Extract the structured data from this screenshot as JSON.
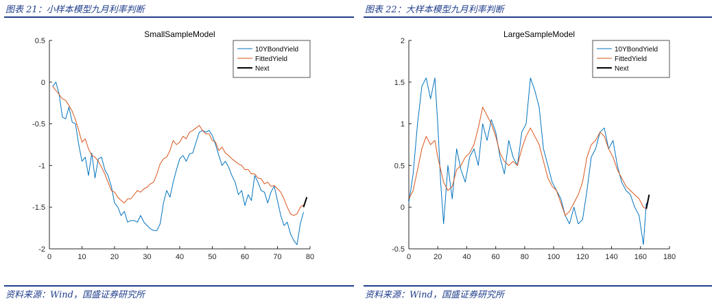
{
  "colors": {
    "series_blue": "#0072BD",
    "series_orange": "#D95319",
    "series_black": "#000000",
    "caption_blue": "#1f3d8a"
  },
  "panels": [
    {
      "caption": "图表 21：小样本模型九月利率判断",
      "source": "资料来源：Wind，国盛证券研究所"
    },
    {
      "caption": "图表 22：大样本模型九月利率判断",
      "source": "资料来源：Wind，国盛证券研究所"
    }
  ],
  "chart_data": [
    {
      "type": "line",
      "title": "SmallSampleModel",
      "xlim": [
        0,
        80
      ],
      "ylim": [
        -2,
        0.5
      ],
      "xticks": [
        0,
        10,
        20,
        30,
        40,
        50,
        60,
        70,
        80
      ],
      "yticks": [
        -2,
        -1.5,
        -1,
        -0.5,
        0,
        0.5
      ],
      "xtick_labels": [
        "0",
        "10",
        "20",
        "30",
        "40",
        "50",
        "60",
        "70",
        "80"
      ],
      "ytick_labels": [
        "-2",
        "-1.5",
        "-1",
        "-0.5",
        "0",
        "0.5"
      ],
      "grid": false,
      "legend": "top-right",
      "series": [
        {
          "name": "10YBondYield",
          "x": [
            1,
            2,
            3,
            4,
            5,
            6,
            7,
            8,
            9,
            10,
            11,
            12,
            13,
            14,
            15,
            16,
            17,
            18,
            19,
            20,
            21,
            22,
            23,
            24,
            25,
            26,
            27,
            28,
            29,
            30,
            31,
            32,
            33,
            34,
            35,
            36,
            37,
            38,
            39,
            40,
            41,
            42,
            43,
            44,
            45,
            46,
            47,
            48,
            49,
            50,
            51,
            52,
            53,
            54,
            55,
            56,
            57,
            58,
            59,
            60,
            61,
            62,
            63,
            64,
            65,
            66,
            67,
            68,
            69,
            70,
            71,
            72,
            73,
            74,
            75,
            76,
            77,
            78
          ],
          "y": [
            -0.05,
            0.0,
            -0.15,
            -0.42,
            -0.44,
            -0.3,
            -0.48,
            -0.5,
            -0.75,
            -0.95,
            -0.9,
            -1.12,
            -0.85,
            -1.15,
            -0.92,
            -0.9,
            -1.05,
            -1.12,
            -1.25,
            -1.45,
            -1.5,
            -1.6,
            -1.55,
            -1.68,
            -1.66,
            -1.66,
            -1.68,
            -1.6,
            -1.68,
            -1.72,
            -1.76,
            -1.78,
            -1.78,
            -1.7,
            -1.45,
            -1.3,
            -1.38,
            -1.2,
            -1.05,
            -0.92,
            -0.88,
            -0.95,
            -0.86,
            -0.85,
            -0.72,
            -0.6,
            -0.58,
            -0.6,
            -0.58,
            -0.64,
            -0.75,
            -0.88,
            -1.0,
            -0.95,
            -1.02,
            -1.12,
            -1.2,
            -1.35,
            -1.3,
            -1.48,
            -1.35,
            -1.42,
            -1.12,
            -1.2,
            -1.3,
            -1.32,
            -1.45,
            -1.32,
            -1.25,
            -1.42,
            -1.6,
            -1.72,
            -1.68,
            -1.82,
            -1.9,
            -1.95,
            -1.7,
            -1.56
          ]
        },
        {
          "name": "FittedYield",
          "x": [
            1,
            2,
            3,
            4,
            5,
            6,
            7,
            8,
            9,
            10,
            11,
            12,
            13,
            14,
            15,
            16,
            17,
            18,
            19,
            20,
            21,
            22,
            23,
            24,
            25,
            26,
            27,
            28,
            29,
            30,
            31,
            32,
            33,
            34,
            35,
            36,
            37,
            38,
            39,
            40,
            41,
            42,
            43,
            44,
            45,
            46,
            47,
            48,
            49,
            50,
            51,
            52,
            53,
            54,
            55,
            56,
            57,
            58,
            59,
            60,
            61,
            62,
            63,
            64,
            65,
            66,
            67,
            68,
            69,
            70,
            71,
            72,
            73,
            74,
            75,
            76,
            77,
            78
          ],
          "y": [
            -0.05,
            -0.1,
            -0.15,
            -0.2,
            -0.22,
            -0.28,
            -0.35,
            -0.45,
            -0.58,
            -0.72,
            -0.68,
            -0.8,
            -0.88,
            -0.9,
            -0.95,
            -1.02,
            -1.1,
            -1.2,
            -1.3,
            -1.32,
            -1.38,
            -1.42,
            -1.45,
            -1.4,
            -1.4,
            -1.35,
            -1.3,
            -1.32,
            -1.28,
            -1.26,
            -1.22,
            -1.2,
            -1.1,
            -0.98,
            -0.92,
            -0.9,
            -0.82,
            -0.7,
            -0.75,
            -0.72,
            -0.65,
            -0.68,
            -0.6,
            -0.58,
            -0.55,
            -0.52,
            -0.58,
            -0.62,
            -0.62,
            -0.7,
            -0.72,
            -0.82,
            -0.78,
            -0.85,
            -0.88,
            -0.92,
            -0.95,
            -0.98,
            -1.0,
            -1.05,
            -1.05,
            -1.1,
            -1.1,
            -1.15,
            -1.16,
            -1.22,
            -1.2,
            -1.25,
            -1.24,
            -1.28,
            -1.32,
            -1.4,
            -1.5,
            -1.58,
            -1.6,
            -1.58,
            -1.5,
            -1.47
          ]
        },
        {
          "name": "Next",
          "x": [
            78,
            79
          ],
          "y": [
            -1.5,
            -1.38
          ]
        }
      ]
    },
    {
      "type": "line",
      "title": "LargeSampleModel",
      "xlim": [
        0,
        180
      ],
      "ylim": [
        -0.5,
        2
      ],
      "xticks": [
        0,
        20,
        40,
        60,
        80,
        100,
        120,
        140,
        160,
        180
      ],
      "yticks": [
        -0.5,
        0,
        0.5,
        1,
        1.5,
        2
      ],
      "xtick_labels": [
        "0",
        "20",
        "40",
        "60",
        "80",
        "100",
        "120",
        "140",
        "160",
        "180"
      ],
      "ytick_labels": [
        "-0.5",
        "0",
        "0.5",
        "1",
        "1.5",
        "2"
      ],
      "grid": false,
      "legend": "top-right",
      "series": [
        {
          "name": "10YBondYield",
          "x": [
            0,
            3,
            6,
            9,
            12,
            15,
            18,
            20,
            22,
            24,
            27,
            30,
            33,
            36,
            39,
            42,
            45,
            48,
            51,
            54,
            57,
            60,
            63,
            66,
            69,
            72,
            75,
            78,
            81,
            84,
            87,
            90,
            93,
            96,
            99,
            102,
            105,
            108,
            111,
            114,
            117,
            120,
            123,
            126,
            129,
            132,
            135,
            138,
            141,
            144,
            147,
            150,
            153,
            156,
            159,
            162,
            164
          ],
          "y": [
            0.05,
            0.4,
            1.0,
            1.45,
            1.55,
            1.3,
            1.55,
            1.0,
            0.3,
            -0.2,
            0.5,
            0.1,
            0.7,
            0.45,
            0.3,
            0.6,
            0.7,
            0.5,
            1.0,
            0.8,
            1.05,
            0.9,
            0.6,
            0.4,
            0.8,
            0.6,
            0.5,
            0.9,
            1.0,
            1.55,
            1.4,
            1.2,
            0.7,
            0.5,
            0.3,
            0.2,
            0.1,
            -0.1,
            -0.2,
            0.0,
            -0.2,
            -0.15,
            0.2,
            0.6,
            0.7,
            0.9,
            0.95,
            0.7,
            0.8,
            0.5,
            0.3,
            0.2,
            0.15,
            0.0,
            -0.1,
            -0.45,
            0.05
          ]
        },
        {
          "name": "FittedYield",
          "x": [
            0,
            3,
            6,
            9,
            12,
            15,
            18,
            20,
            22,
            24,
            27,
            30,
            33,
            36,
            39,
            42,
            45,
            48,
            51,
            54,
            57,
            60,
            63,
            66,
            69,
            72,
            75,
            78,
            81,
            84,
            87,
            90,
            93,
            96,
            99,
            102,
            105,
            108,
            111,
            114,
            117,
            120,
            123,
            126,
            129,
            132,
            135,
            138,
            141,
            144,
            147,
            150,
            153,
            156,
            159,
            162,
            164
          ],
          "y": [
            0.1,
            0.2,
            0.45,
            0.7,
            0.85,
            0.75,
            0.8,
            0.6,
            0.45,
            0.3,
            0.2,
            0.25,
            0.45,
            0.5,
            0.6,
            0.65,
            0.75,
            0.95,
            1.2,
            1.1,
            1.0,
            0.85,
            0.65,
            0.55,
            0.5,
            0.55,
            0.5,
            0.7,
            0.85,
            0.95,
            0.85,
            0.75,
            0.55,
            0.35,
            0.25,
            0.2,
            0.05,
            -0.1,
            -0.05,
            0.05,
            0.15,
            0.3,
            0.6,
            0.75,
            0.8,
            0.9,
            0.85,
            0.7,
            0.6,
            0.45,
            0.35,
            0.25,
            0.2,
            0.15,
            0.1,
            0.0,
            -0.02
          ]
        },
        {
          "name": "Next",
          "x": [
            164,
            166
          ],
          "y": [
            -0.02,
            0.15
          ]
        }
      ]
    }
  ]
}
